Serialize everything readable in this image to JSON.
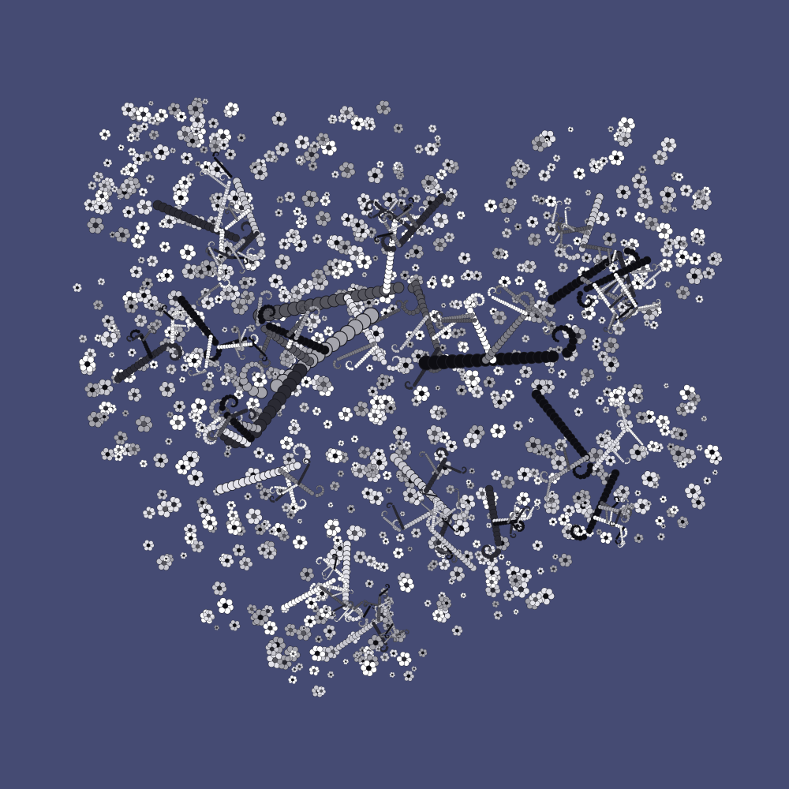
{
  "artwork": {
    "kind": "generative fractal",
    "description_icon": "fractal-cluster-icon",
    "colors": {
      "background": "#454b73",
      "palette": [
        "#0d0d12",
        "#2a2a33",
        "#55555d",
        "#7e7e86",
        "#a4a4ac",
        "#c8c8d0",
        "#e3e3ea",
        "#ffffff"
      ]
    }
  }
}
